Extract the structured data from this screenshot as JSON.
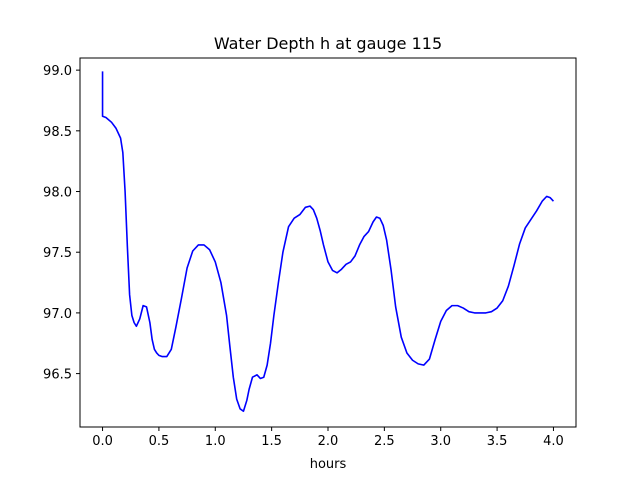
{
  "chart_data": {
    "type": "line",
    "title": "Water Depth h at gauge 115",
    "xlabel": "hours",
    "ylabel": "",
    "xlim": [
      -0.2,
      4.2
    ],
    "ylim": [
      96.06,
      99.1
    ],
    "xticks": [
      0.0,
      0.5,
      1.0,
      1.5,
      2.0,
      2.5,
      3.0,
      3.5,
      4.0
    ],
    "xtick_labels": [
      "0.0",
      "0.5",
      "1.0",
      "1.5",
      "2.0",
      "2.5",
      "3.0",
      "3.5",
      "4.0"
    ],
    "yticks": [
      96.5,
      97.0,
      97.5,
      98.0,
      98.5,
      99.0
    ],
    "ytick_labels": [
      "96.5",
      "97.0",
      "97.5",
      "98.0",
      "98.5",
      "99.0"
    ],
    "grid": false,
    "series": [
      {
        "color": "#0000ff",
        "x": [
          0.0,
          0.0,
          0.03,
          0.08,
          0.12,
          0.16,
          0.18,
          0.2,
          0.22,
          0.24,
          0.26,
          0.28,
          0.3,
          0.33,
          0.36,
          0.39,
          0.42,
          0.44,
          0.46,
          0.48,
          0.5,
          0.53,
          0.57,
          0.61,
          0.65,
          0.7,
          0.75,
          0.8,
          0.85,
          0.9,
          0.95,
          1.0,
          1.05,
          1.1,
          1.13,
          1.16,
          1.19,
          1.22,
          1.25,
          1.28,
          1.3,
          1.33,
          1.37,
          1.4,
          1.43,
          1.46,
          1.49,
          1.52,
          1.56,
          1.6,
          1.65,
          1.7,
          1.75,
          1.8,
          1.84,
          1.87,
          1.9,
          1.93,
          1.96,
          2.0,
          2.04,
          2.08,
          2.12,
          2.16,
          2.2,
          2.24,
          2.28,
          2.32,
          2.36,
          2.4,
          2.43,
          2.46,
          2.49,
          2.52,
          2.56,
          2.6,
          2.65,
          2.7,
          2.75,
          2.8,
          2.85,
          2.9,
          2.95,
          3.0,
          3.05,
          3.1,
          3.15,
          3.2,
          3.25,
          3.3,
          3.35,
          3.4,
          3.45,
          3.5,
          3.55,
          3.6,
          3.65,
          3.7,
          3.75,
          3.8,
          3.85,
          3.9,
          3.94,
          3.97,
          4.0
        ],
        "y": [
          98.99,
          98.62,
          98.61,
          98.57,
          98.52,
          98.44,
          98.32,
          98.0,
          97.55,
          97.15,
          96.98,
          96.92,
          96.89,
          96.95,
          97.06,
          97.05,
          96.92,
          96.78,
          96.7,
          96.67,
          96.65,
          96.64,
          96.64,
          96.7,
          96.88,
          97.12,
          97.37,
          97.51,
          97.56,
          97.56,
          97.52,
          97.42,
          97.25,
          96.98,
          96.72,
          96.47,
          96.29,
          96.21,
          96.19,
          96.28,
          96.37,
          96.47,
          96.49,
          96.46,
          96.47,
          96.57,
          96.75,
          96.98,
          97.25,
          97.5,
          97.71,
          97.78,
          97.81,
          97.87,
          97.88,
          97.85,
          97.78,
          97.68,
          97.56,
          97.42,
          97.35,
          97.33,
          97.36,
          97.4,
          97.42,
          97.47,
          97.56,
          97.63,
          97.67,
          97.75,
          97.79,
          97.78,
          97.72,
          97.6,
          97.35,
          97.05,
          96.8,
          96.67,
          96.61,
          96.58,
          96.57,
          96.62,
          96.78,
          96.93,
          97.02,
          97.06,
          97.06,
          97.04,
          97.01,
          97.0,
          97.0,
          97.0,
          97.01,
          97.04,
          97.1,
          97.22,
          97.39,
          97.57,
          97.7,
          97.77,
          97.84,
          97.92,
          97.96,
          97.95,
          97.92
        ]
      }
    ]
  }
}
